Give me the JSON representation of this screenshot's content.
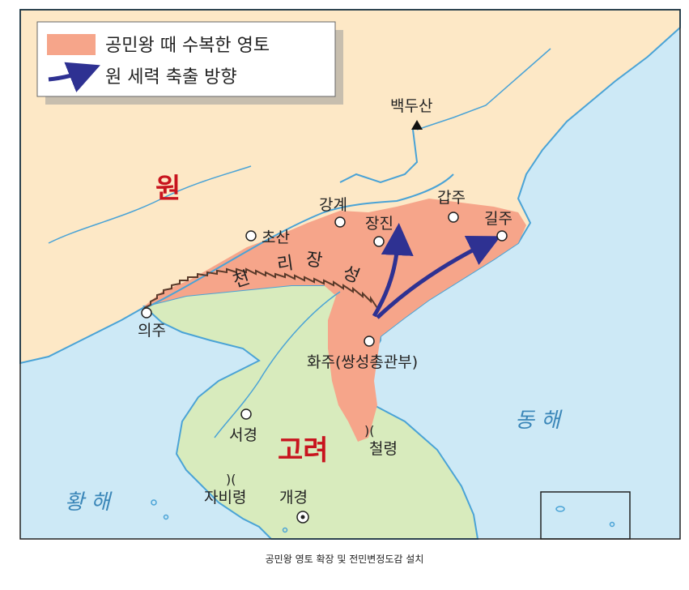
{
  "legend": {
    "territory_label": "공민왕 때 수복한 영토",
    "arrow_label": "원 세력 축출 방향",
    "territory_color": "#f6a58a",
    "arrow_color": "#2e3192"
  },
  "regions": {
    "yuan": "원",
    "goryeo": "고려"
  },
  "seas": {
    "east": "동 해",
    "west": "황 해"
  },
  "wall": {
    "chars": [
      "천",
      "리",
      "장",
      "성"
    ]
  },
  "places": {
    "baekdu": "백두산",
    "gapju": "갑주",
    "gilju": "길주",
    "ganggye": "강계",
    "jangjin": "장진",
    "chosan": "초산",
    "uiju": "의주",
    "hwaju": "화주(쌍성총관부)",
    "seogyeong": "서경",
    "cheollyeong": "철령",
    "jabiryeong": "자비령",
    "gaegyeong": "개경"
  },
  "colors": {
    "sea": "#cde9f6",
    "land_outside": "#fde8c6",
    "goryeo_land": "#d8ebbd",
    "border": "#4aa3d6"
  },
  "caption": "공민왕 영토 확장 및 전민변정도감 설치"
}
